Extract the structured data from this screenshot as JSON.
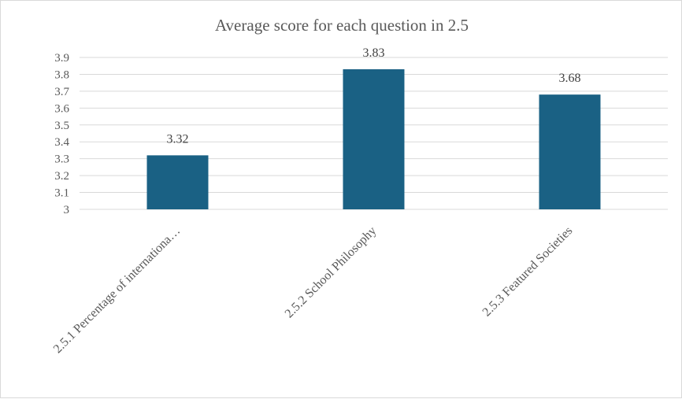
{
  "chart_data": {
    "type": "bar",
    "title": "Average score for each question in 2.5",
    "categories": [
      "2.5.1 Percentage of internationa…",
      "2.5.2 School Philosophy",
      "2.5.3 Featured Societies"
    ],
    "values": [
      3.32,
      3.83,
      3.68
    ],
    "data_labels": [
      "3.32",
      "3.83",
      "3.68"
    ],
    "yticks": [
      "3",
      "3.1",
      "3.2",
      "3.3",
      "3.4",
      "3.5",
      "3.6",
      "3.7",
      "3.8",
      "3.9"
    ],
    "ylim": [
      3,
      3.9
    ],
    "grid": true,
    "legend": "none",
    "bar_color": "#1a6184",
    "grid_color": "#d9d9d9",
    "text_color": "#595959"
  }
}
